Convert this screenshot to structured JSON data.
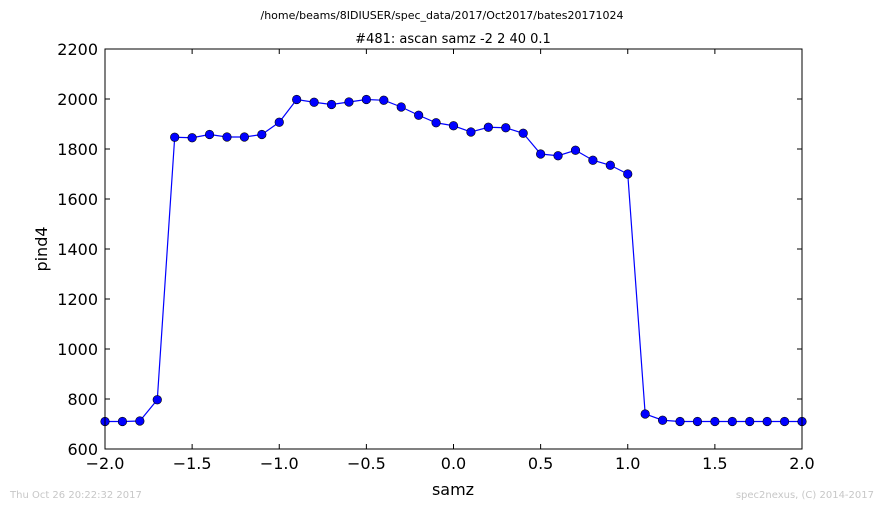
{
  "suptitle": "/home/beams/8IDIUSER/spec_data/2017/Oct2017/bates20171024",
  "footer": {
    "left": "Thu Oct 26 20:22:32 2017",
    "right": "spec2nexus, (C) 2014-2017"
  },
  "chart_data": {
    "type": "line",
    "title": "#481: ascan  samz -2 2  40 0.1",
    "xlabel": "samz",
    "ylabel": "pind4",
    "xlim": [
      -2.0,
      2.0
    ],
    "ylim": [
      600,
      2200
    ],
    "xticks": [
      -2.0,
      -1.5,
      -1.0,
      -0.5,
      0.0,
      0.5,
      1.0,
      1.5,
      2.0
    ],
    "xtick_labels": [
      "−2.0",
      "−1.5",
      "−1.0",
      "−0.5",
      "0.0",
      "0.5",
      "1.0",
      "1.5",
      "2.0"
    ],
    "yticks": [
      600,
      800,
      1000,
      1200,
      1400,
      1600,
      1800,
      2000,
      2200
    ],
    "ytick_labels": [
      "600",
      "800",
      "1000",
      "1200",
      "1400",
      "1600",
      "1800",
      "2000",
      "2200"
    ],
    "grid": false,
    "series": [
      {
        "color": "#0000ff",
        "marker": "circle",
        "x": [
          -2.0,
          -1.9,
          -1.8,
          -1.7,
          -1.6,
          -1.5,
          -1.4,
          -1.3,
          -1.2,
          -1.1,
          -1.0,
          -0.9,
          -0.8,
          -0.7,
          -0.6,
          -0.5,
          -0.4,
          -0.3,
          -0.2,
          -0.1,
          0.0,
          0.1,
          0.2,
          0.3,
          0.4,
          0.5,
          0.6,
          0.7,
          0.8,
          0.9,
          1.0,
          1.1,
          1.2,
          1.3,
          1.4,
          1.5,
          1.6,
          1.7,
          1.8,
          1.9,
          2.0
        ],
        "y": [
          710,
          710,
          712,
          797,
          1847,
          1845,
          1858,
          1848,
          1848,
          1858,
          1907,
          1998,
          1987,
          1978,
          1988,
          1998,
          1995,
          1968,
          1935,
          1905,
          1893,
          1868,
          1887,
          1885,
          1863,
          1780,
          1773,
          1795,
          1755,
          1735,
          1700,
          740,
          715,
          710,
          710,
          710,
          710,
          710,
          710,
          710,
          710
        ]
      }
    ]
  }
}
